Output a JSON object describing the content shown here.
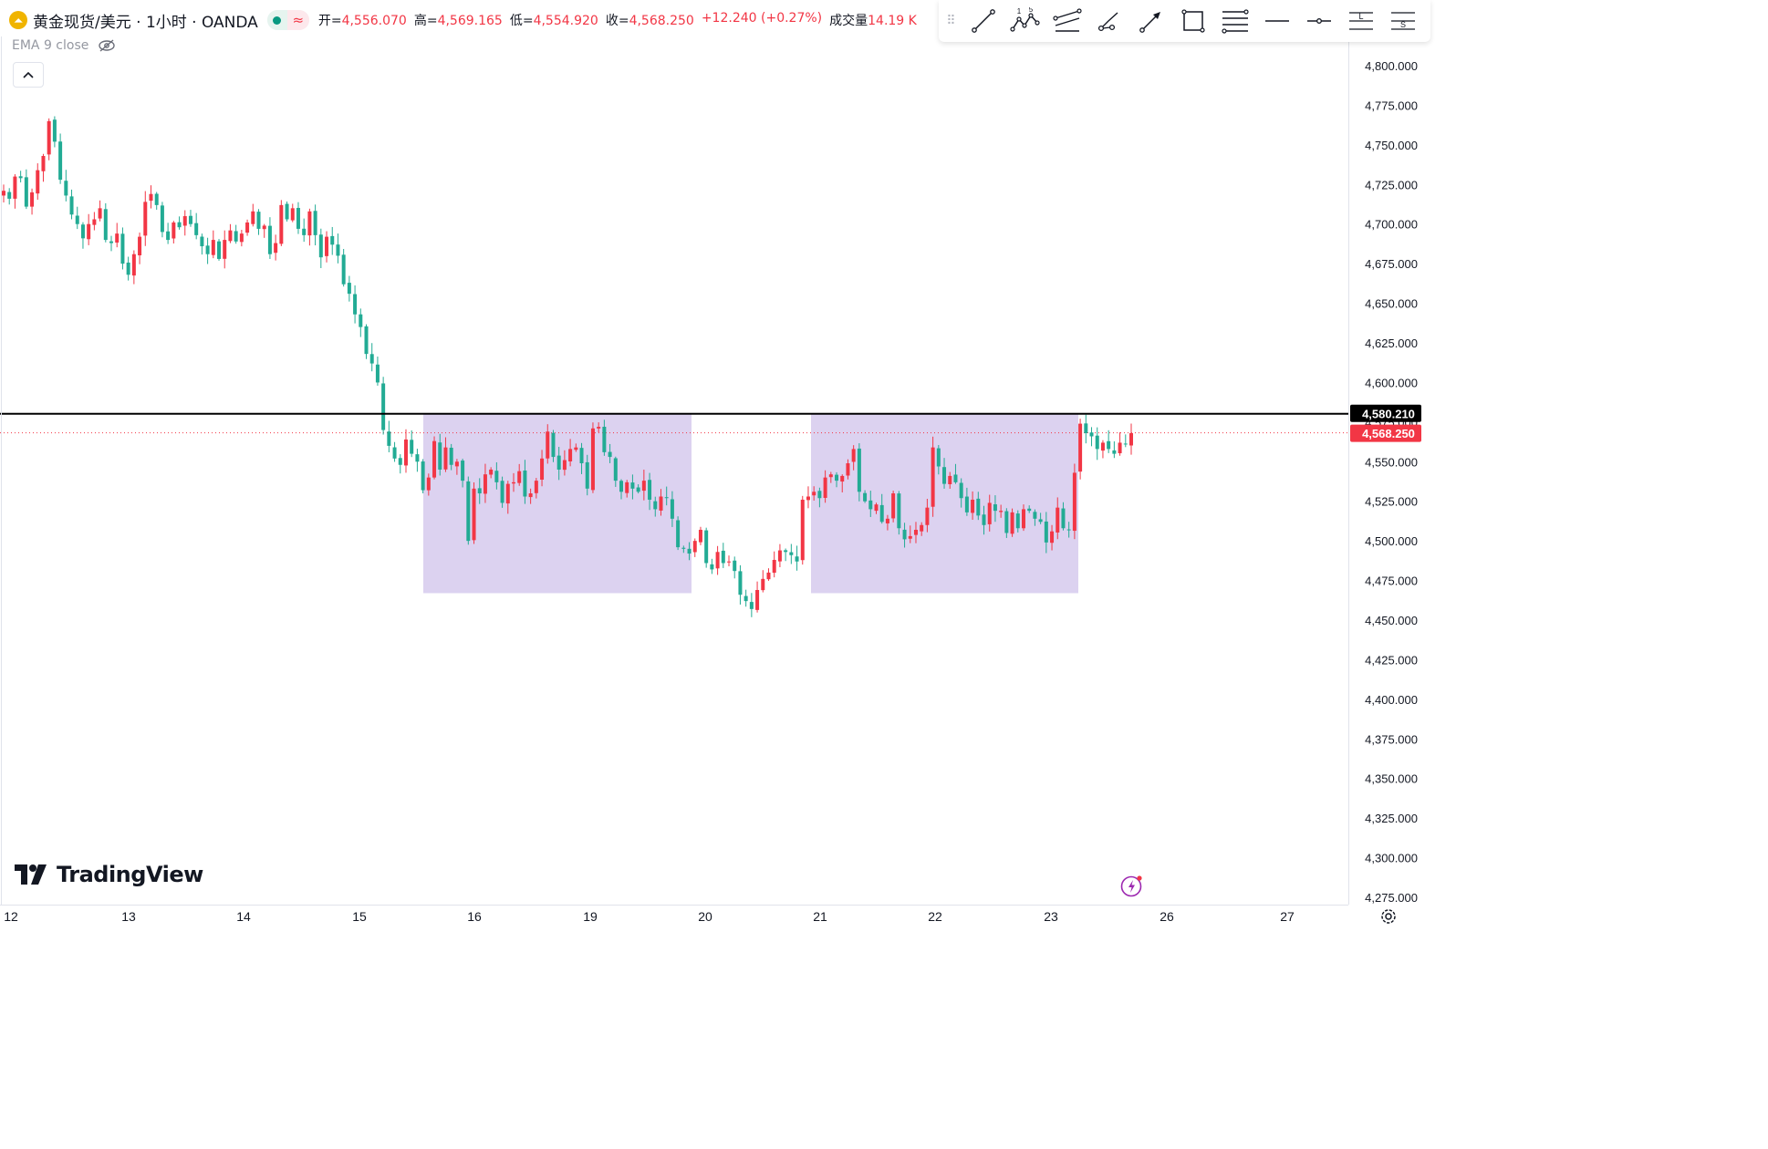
{
  "header": {
    "symbol_title": "黄金现货/美元 · 1小时 · OANDA",
    "symbol_icon": "gold-coin-icon",
    "status_market_icon": "market-open-dot-icon",
    "status_delay_icon": "wave-icon",
    "ohlc": {
      "open_label": "开=",
      "open_value": "4,556.070",
      "high_label": "高=",
      "high_value": "4,569.165",
      "low_label": "低=",
      "low_value": "4,554.920",
      "close_label": "收=",
      "close_value": "4,568.250",
      "change": "+12.240 (+0.27%)",
      "volume_label": "成交量",
      "volume_value": "14.19 K"
    },
    "indicator": "EMA 9 close",
    "indicator_icon": "eye-off-icon",
    "collapse_icon": "chevron-up-icon"
  },
  "toolbar": {
    "tools": [
      "trend-line-icon",
      "xabcd-pattern-icon",
      "parallel-channel-icon",
      "path-icon",
      "arrow-icon",
      "rectangle-icon",
      "fib-retracement-icon",
      "horizontal-ray-icon",
      "horizontal-line-icon",
      "long-position-icon",
      "short-position-icon"
    ],
    "wave_label_1": "1",
    "wave_label_5": "5",
    "long_label": "L",
    "short_label": "S"
  },
  "branding": {
    "logo_text": "TradingView",
    "logo_icon": "tradingview-logo-icon"
  },
  "footer": {
    "bolt_icon": "lightning-icon",
    "settings_icon": "gear-icon"
  },
  "colors": {
    "up": "#f23645",
    "down": "#22ab94",
    "zone_fill": "#d8cdee",
    "level_line": "#000000",
    "last_price_bg": "#f23645",
    "level_label_bg": "#000000"
  },
  "chart_data": {
    "type": "candlestick",
    "instrument": "XAU/USD",
    "timeframe": "1H",
    "y_axis": {
      "ticks": [
        4275,
        4300,
        4325,
        4350,
        4375,
        4400,
        4425,
        4450,
        4475,
        4500,
        4525,
        4550,
        4575,
        4600,
        4625,
        4650,
        4675,
        4700,
        4725,
        4750,
        4775,
        4800
      ],
      "tick_labels": [
        "4,275.000",
        "4,300.000",
        "4,325.000",
        "4,350.000",
        "4,375.000",
        "4,400.000",
        "4,425.000",
        "4,450.000",
        "4,475.000",
        "4,500.000",
        "4,525.000",
        "4,550.000",
        "4,575.000",
        "4,600.000",
        "4,625.000",
        "4,650.000",
        "4,675.000",
        "4,700.000",
        "4,725.000",
        "4,750.000",
        "4,775.000",
        "4,800.000"
      ],
      "range": [
        4262.5,
        4805
      ]
    },
    "x_axis": {
      "ticks": [
        12,
        13,
        14,
        15,
        16,
        19,
        20,
        21,
        22,
        23,
        26,
        27
      ],
      "tick_labels": [
        "12",
        "13",
        "14",
        "15",
        "16",
        "19",
        "20",
        "21",
        "22",
        "23",
        "26",
        "27"
      ]
    },
    "horizontal_level": {
      "value": 4580.21,
      "label": "4,580.210"
    },
    "last_price": {
      "value": 4568.25,
      "label": "4,568.250"
    },
    "zones": [
      {
        "from": "15 14:00",
        "to": "19 23:00",
        "top": 4580.21,
        "bottom": 4467
      },
      {
        "from": "20 23:00",
        "to": "23 07:00",
        "top": 4580.21,
        "bottom": 4467
      }
    ],
    "series_close_approx": [
      4721,
      4716,
      4730,
      4729,
      4711,
      4720,
      4734,
      4743,
      4765,
      4752,
      4728,
      4718,
      4706,
      4700,
      4691,
      4700,
      4703,
      4710,
      4690,
      4688,
      4694,
      4675,
      4668,
      4681,
      4692,
      4714,
      4719,
      4712,
      4695,
      4690,
      4701,
      4698,
      4705,
      4700,
      4693,
      4686,
      4681,
      4690,
      4678,
      4690,
      4696,
      4689,
      4694,
      4701,
      4708,
      4697,
      4699,
      4681,
      4688,
      4712,
      4703,
      4710,
      4697,
      4693,
      4708,
      4693,
      4679,
      4692,
      4687,
      4680,
      4662,
      4656,
      4643,
      4635,
      4618,
      4612,
      4600,
      4570,
      4560,
      4552,
      4548,
      4564,
      4555,
      4550,
      4532,
      4540,
      4563,
      4545,
      4559,
      4548,
      4550,
      4538,
      4500,
      4533,
      4530,
      4542,
      4545,
      4537,
      4524,
      4536,
      4537,
      4544,
      4528,
      4530,
      4538,
      4552,
      4569,
      4553,
      4545,
      4551,
      4558,
      4559,
      4549,
      4533,
      4571,
      4572,
      4556,
      4553,
      4538,
      4531,
      4537,
      4533,
      4531,
      4538,
      4526,
      4520,
      4528,
      4527,
      4514,
      4496,
      4495,
      4492,
      4500,
      4507,
      4486,
      4482,
      4493,
      4486,
      4487,
      4481,
      4466,
      4462,
      4457,
      4469,
      4476,
      4480,
      4488,
      4494,
      4493,
      4491,
      4487,
      4526,
      4528,
      4531,
      4527,
      4540,
      4542,
      4538,
      4541,
      4549,
      4558,
      4531,
      4525,
      4520,
      4523,
      4512,
      4514,
      4530,
      4508,
      4501,
      4503,
      4507,
      4510,
      4521,
      4559,
      4547,
      4536,
      4541,
      4537,
      4527,
      4518,
      4526,
      4516,
      4510,
      4524,
      4519,
      4519,
      4505,
      4518,
      4508,
      4520,
      4519,
      4514,
      4512,
      4499,
      4506,
      4521,
      4508,
      4507,
      4543,
      4574,
      4568,
      4566,
      4558,
      4562,
      4558,
      4555,
      4562,
      4561,
      4568
    ]
  }
}
